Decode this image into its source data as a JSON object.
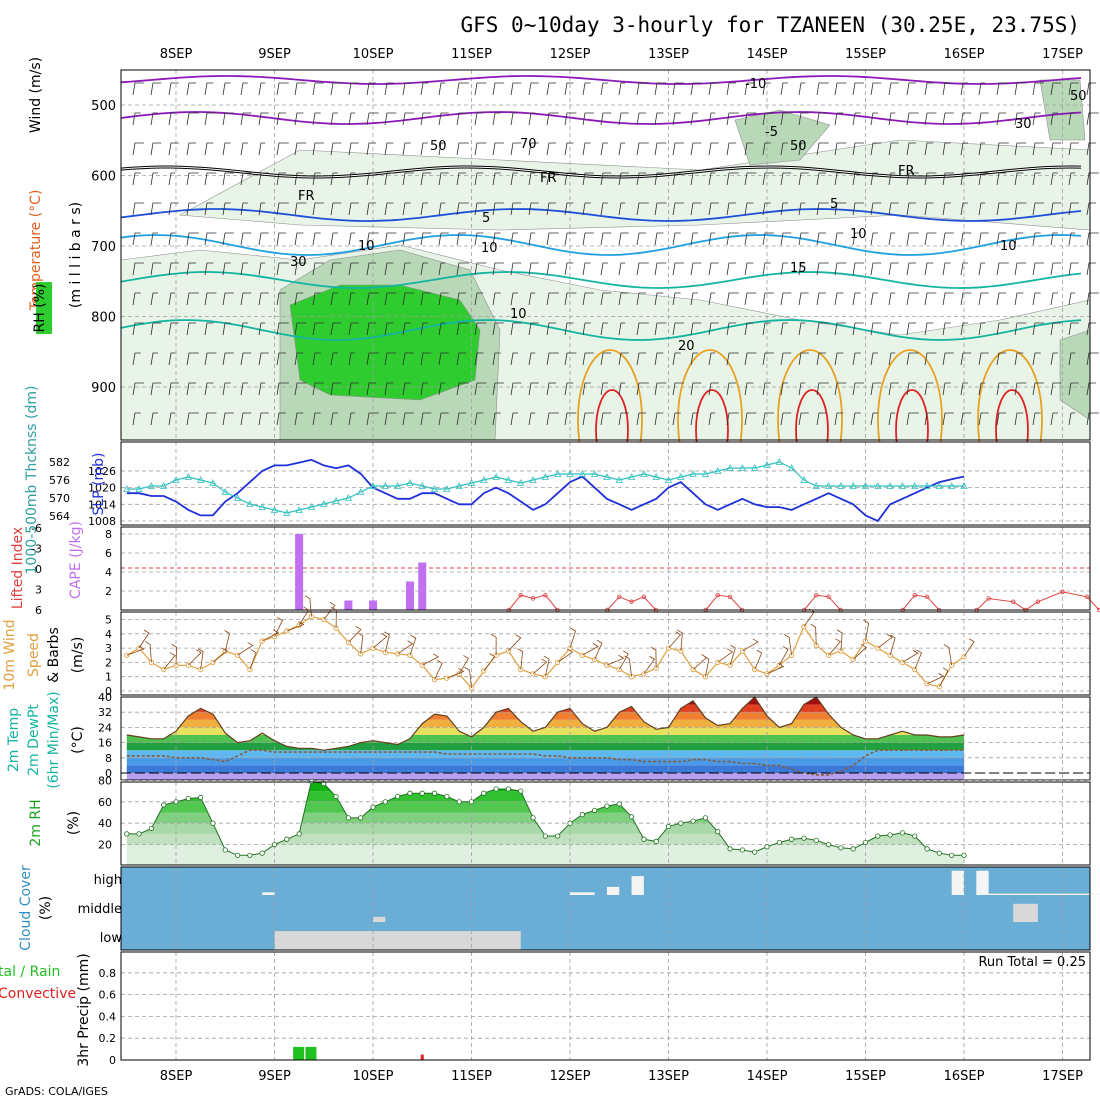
{
  "title": "GFS 0~10day 3-hourly for TZANEEN (30.25E, 23.75S)",
  "footer": "GrADS: COLA/IGES",
  "colors": {
    "rh_light": "#e8f4e8",
    "rh_mid": "#b8d8b8",
    "rh_green": "#2ecc2e",
    "frz": "#000000",
    "t_purple": "#8b1ab8",
    "t_blue": "#1f4fd8",
    "t_cyan": "#1fa0e0",
    "t_teal": "#14b4a0",
    "t_orange": "#e8a020",
    "t_red": "#e02020",
    "slp": "#1f2fd8",
    "thk": "#30c0c0",
    "cape": "#c070f0",
    "li": "#e04040",
    "wind10": "#e0a040",
    "barb": "#8b4513",
    "cloud_bg": "#6aaed6",
    "cloud_fill": "#d8d8d8",
    "precip_total": "#20c020",
    "precip_conv": "#e02020"
  },
  "chart_data": [
    {
      "type": "heatmap",
      "name_text": "pressure-height cross-section",
      "ylabels": [
        "Wind (m/s)",
        "Temperature (°C)",
        "RH (%)"
      ],
      "ylabel_unit": "(m i l l i b a r s)",
      "x": [
        "8SEP",
        "9SEP",
        "10SEP",
        "11SEP",
        "12SEP",
        "13SEP",
        "14SEP",
        "15SEP",
        "16SEP",
        "17SEP"
      ],
      "y_ticks": [
        500,
        600,
        700,
        800,
        900
      ],
      "y_range": [
        1000,
        450
      ],
      "contour_labels": [
        "-10",
        "-5",
        "FR",
        "FR",
        "FR",
        "5",
        "5",
        "10",
        "10",
        "10",
        "15",
        "20",
        "10",
        "50",
        "30",
        "50",
        "70",
        "50",
        "30",
        "10"
      ]
    },
    {
      "type": "line",
      "ylabel_left": "1000-500mb Thcknss (dm)",
      "ylabel_right": "SLP (mb)",
      "left_ticks": [
        564,
        570,
        576,
        582
      ],
      "right_ticks": [
        1008,
        1014,
        1020,
        1026
      ],
      "series": [
        {
          "name": "SLP (mb)",
          "values": [
            1018,
            1018,
            1017,
            1017,
            1015,
            1012,
            1010,
            1010,
            1015,
            1018,
            1022,
            1026,
            1028,
            1028,
            1029,
            1030,
            1028,
            1027,
            1028,
            1025,
            1020,
            1018,
            1016,
            1016,
            1018,
            1018,
            1016,
            1014,
            1014,
            1018,
            1020,
            1018,
            1015,
            1012,
            1014,
            1018,
            1022,
            1024,
            1020,
            1016,
            1014,
            1012,
            1014,
            1016,
            1020,
            1022,
            1018,
            1014,
            1012,
            1014,
            1016,
            1014,
            1013,
            1013,
            1012,
            1014,
            1016,
            1018,
            1016,
            1014,
            1010,
            1008,
            1014,
            1016,
            1018,
            1020,
            1022,
            1023,
            1024
          ]
        },
        {
          "name": "1000-500mb Thcknss (dm)",
          "values": [
            573,
            573,
            574,
            574,
            576,
            577,
            576,
            575,
            572,
            570,
            568,
            567,
            566,
            565,
            566,
            567,
            568,
            569,
            570,
            572,
            574,
            574,
            574,
            575,
            574,
            573,
            573,
            574,
            575,
            576,
            577,
            576,
            575,
            576,
            577,
            578,
            578,
            578,
            578,
            577,
            576,
            577,
            578,
            577,
            576,
            577,
            578,
            578,
            579,
            580,
            580,
            580,
            581,
            582,
            580,
            576,
            574,
            574,
            574,
            574,
            574,
            574,
            574,
            574,
            574,
            574,
            574,
            574,
            574
          ]
        }
      ]
    },
    {
      "type": "bar",
      "ylabel_left": "Lifted Index",
      "ylabel_right": "CAPE (J/kg)",
      "left_ticks": [
        "6",
        "3",
        "0",
        "-3",
        "-6"
      ],
      "right_ticks": [
        2,
        4,
        6,
        8
      ],
      "cape_bars": [
        {
          "x": "9SEP 06Z",
          "value": 8
        },
        {
          "x": "9SEP 12Z",
          "value": 0
        },
        {
          "x": "9SEP 18Z",
          "value": 1
        },
        {
          "x": "10SEP 00Z",
          "value": 1
        },
        {
          "x": "10SEP 09Z",
          "value": 3
        },
        {
          "x": "10SEP 12Z",
          "value": 5
        }
      ],
      "lifted_index": [
        {
          "x": "11SEP 12Z",
          "value": 4.5
        },
        {
          "x": "11SEP 15Z",
          "value": 3.5
        },
        {
          "x": "11SEP 18Z",
          "value": 4.5
        },
        {
          "x": "12SEP 12Z",
          "value": 4
        },
        {
          "x": "12SEP 15Z",
          "value": 2.5
        },
        {
          "x": "12SEP 18Z",
          "value": 4
        },
        {
          "x": "13SEP 12Z",
          "value": 4.5
        },
        {
          "x": "13SEP 15Z",
          "value": 4
        },
        {
          "x": "14SEP 12Z",
          "value": 4.5
        },
        {
          "x": "14SEP 15Z",
          "value": 4
        },
        {
          "x": "15SEP 12Z",
          "value": 4.5
        },
        {
          "x": "15SEP 15Z",
          "value": 4
        },
        {
          "x": "16SEP 06Z",
          "value": 3.5
        },
        {
          "x": "16SEP 12Z",
          "value": 2.5
        },
        {
          "x": "16SEP 15Z",
          "value": 0
        },
        {
          "x": "16SEP 18Z",
          "value": 2.5
        },
        {
          "x": "17SEP 00Z",
          "value": 5.5
        },
        {
          "x": "17SEP 06Z",
          "value": 4
        }
      ]
    },
    {
      "type": "line",
      "ylabel": "10m Wind Speed & Barbs (m/s)",
      "ylabel_parts": [
        "10m Wind",
        "Speed",
        "& Barbs"
      ],
      "ylabel_unit": "(m/s)",
      "y_ticks": [
        0,
        1,
        2,
        3,
        4,
        5
      ],
      "series": [
        {
          "name": "10m Wind Speed",
          "values": [
            2.5,
            3.0,
            2.0,
            1.5,
            1.8,
            1.8,
            1.5,
            2.0,
            2.8,
            2.5,
            1.5,
            3.5,
            3.8,
            4.2,
            4.6,
            5.2,
            5.0,
            4.4,
            3.4,
            2.6,
            3.0,
            2.7,
            2.6,
            2.5,
            1.8,
            0.8,
            0.9,
            1.2,
            0.2,
            1.4,
            2.5,
            2.8,
            1.5,
            1.2,
            1.0,
            2.0,
            3.0,
            2.5,
            2.2,
            1.8,
            1.5,
            1.0,
            1.2,
            1.6,
            3.0,
            2.8,
            1.5,
            1.0,
            2.0,
            1.8,
            2.8,
            1.5,
            1.2,
            1.8,
            2.5,
            4.5,
            3.2,
            2.5,
            2.8,
            2.2,
            3.5,
            3.0,
            2.5,
            2.0,
            1.5,
            0.5,
            0.3,
            1.8,
            2.4
          ]
        }
      ]
    },
    {
      "type": "area",
      "ylabel_parts": [
        "2m Temp",
        "2m DewPt",
        "(6hr Min/Max)"
      ],
      "ylabel_unit": "(°C)",
      "y_ticks": [
        0,
        8,
        16,
        24,
        32,
        40
      ],
      "series": [
        {
          "name": "2m Temp",
          "values": [
            20,
            19,
            18,
            18,
            22,
            30,
            34,
            31,
            21,
            16,
            17,
            21,
            17,
            14,
            13,
            13,
            12,
            13,
            14,
            16,
            17,
            16,
            15,
            18,
            26,
            31,
            30,
            22,
            19,
            24,
            32,
            34,
            27,
            22,
            24,
            32,
            34,
            26,
            22,
            24,
            32,
            35,
            27,
            23,
            24,
            34,
            38,
            29,
            25,
            26,
            34,
            40,
            30,
            24,
            26,
            36,
            40,
            31,
            24,
            20,
            18,
            18,
            20,
            22,
            20,
            20,
            19,
            19,
            20
          ]
        },
        {
          "name": "2m DewPt",
          "values": [
            9,
            9,
            9,
            9,
            8,
            8,
            8,
            7,
            6,
            9,
            12,
            12,
            11,
            11,
            11,
            11,
            11,
            11,
            11,
            11,
            11,
            11,
            11,
            11,
            11,
            11,
            10,
            10,
            10,
            10,
            10,
            10,
            10,
            10,
            9,
            9,
            8,
            8,
            8,
            8,
            7,
            7,
            6,
            6,
            6,
            6,
            7,
            7,
            6,
            6,
            5,
            5,
            4,
            4,
            2,
            0,
            -1,
            -1,
            1,
            4,
            9,
            12,
            12,
            12,
            12,
            12,
            12,
            12,
            12
          ]
        }
      ]
    },
    {
      "type": "area",
      "ylabel": "2m RH",
      "ylabel_unit": "(%)",
      "y_ticks": [
        20,
        40,
        60,
        80
      ],
      "series": [
        {
          "name": "2m RH",
          "values": [
            30,
            30,
            35,
            57,
            60,
            63,
            64,
            40,
            15,
            10,
            10,
            12,
            20,
            25,
            30,
            79,
            77,
            65,
            45,
            45,
            55,
            60,
            65,
            68,
            68,
            68,
            65,
            60,
            60,
            68,
            72,
            72,
            70,
            45,
            28,
            28,
            40,
            48,
            52,
            56,
            58,
            46,
            25,
            23,
            37,
            40,
            42,
            45,
            32,
            16,
            15,
            13,
            18,
            22,
            25,
            26,
            24,
            20,
            17,
            16,
            22,
            28,
            29,
            31,
            28,
            16,
            12,
            10,
            10
          ]
        }
      ]
    },
    {
      "type": "bar",
      "ylabel": "Cloud Cover",
      "ylabel_unit": "(%)",
      "categories": [
        "high",
        "middle",
        "low"
      ],
      "low_cloud_percent": [
        {
          "range": [
            "9SEP 00Z",
            "11SEP 12Z"
          ],
          "value": 70
        }
      ],
      "middle_cloud_percent": [
        {
          "range": [
            "10SEP 00Z",
            "10SEP 03Z"
          ],
          "value": 20
        },
        {
          "range": [
            "16SEP 12Z",
            "16SEP 18Z"
          ],
          "value": 70
        }
      ],
      "high_cloud_percent": [
        {
          "range": [
            "8SEP 21Z",
            "9SEP 00Z"
          ],
          "value": 10
        },
        {
          "range": [
            "12SEP 00Z",
            "12SEP 06Z"
          ],
          "value": 10
        },
        {
          "range": [
            "12SEP 09Z",
            "12SEP 12Z"
          ],
          "value": 30
        },
        {
          "range": [
            "12SEP 15Z",
            "12SEP 18Z"
          ],
          "value": 70
        },
        {
          "range": [
            "15SEP 21Z",
            "16SEP 00Z"
          ],
          "value": 90
        },
        {
          "range": [
            "16SEP 03Z",
            "16SEP 06Z"
          ],
          "value": 90
        },
        {
          "range": [
            "16SEP 06Z",
            "17SEP 12Z"
          ],
          "value": 5
        }
      ]
    },
    {
      "type": "bar",
      "ylabel_parts": [
        "Total / Rain",
        "Convective"
      ],
      "ylabel_parts_display": [
        "tal / Rain",
        "Convective"
      ],
      "ylabel": "3hr Precip (mm)",
      "annotation": "Run Total = 0.25",
      "y_ticks": [
        0,
        0.2,
        0.4,
        0.6,
        0.8
      ],
      "ylim": [
        0,
        1
      ],
      "total_precip": [
        {
          "x": "9SEP 06Z",
          "value": 0.12
        },
        {
          "x": "9SEP 09Z",
          "value": 0.12
        }
      ],
      "convective_precip": [
        {
          "x": "10SEP 12Z",
          "value": 0.05
        }
      ]
    }
  ]
}
